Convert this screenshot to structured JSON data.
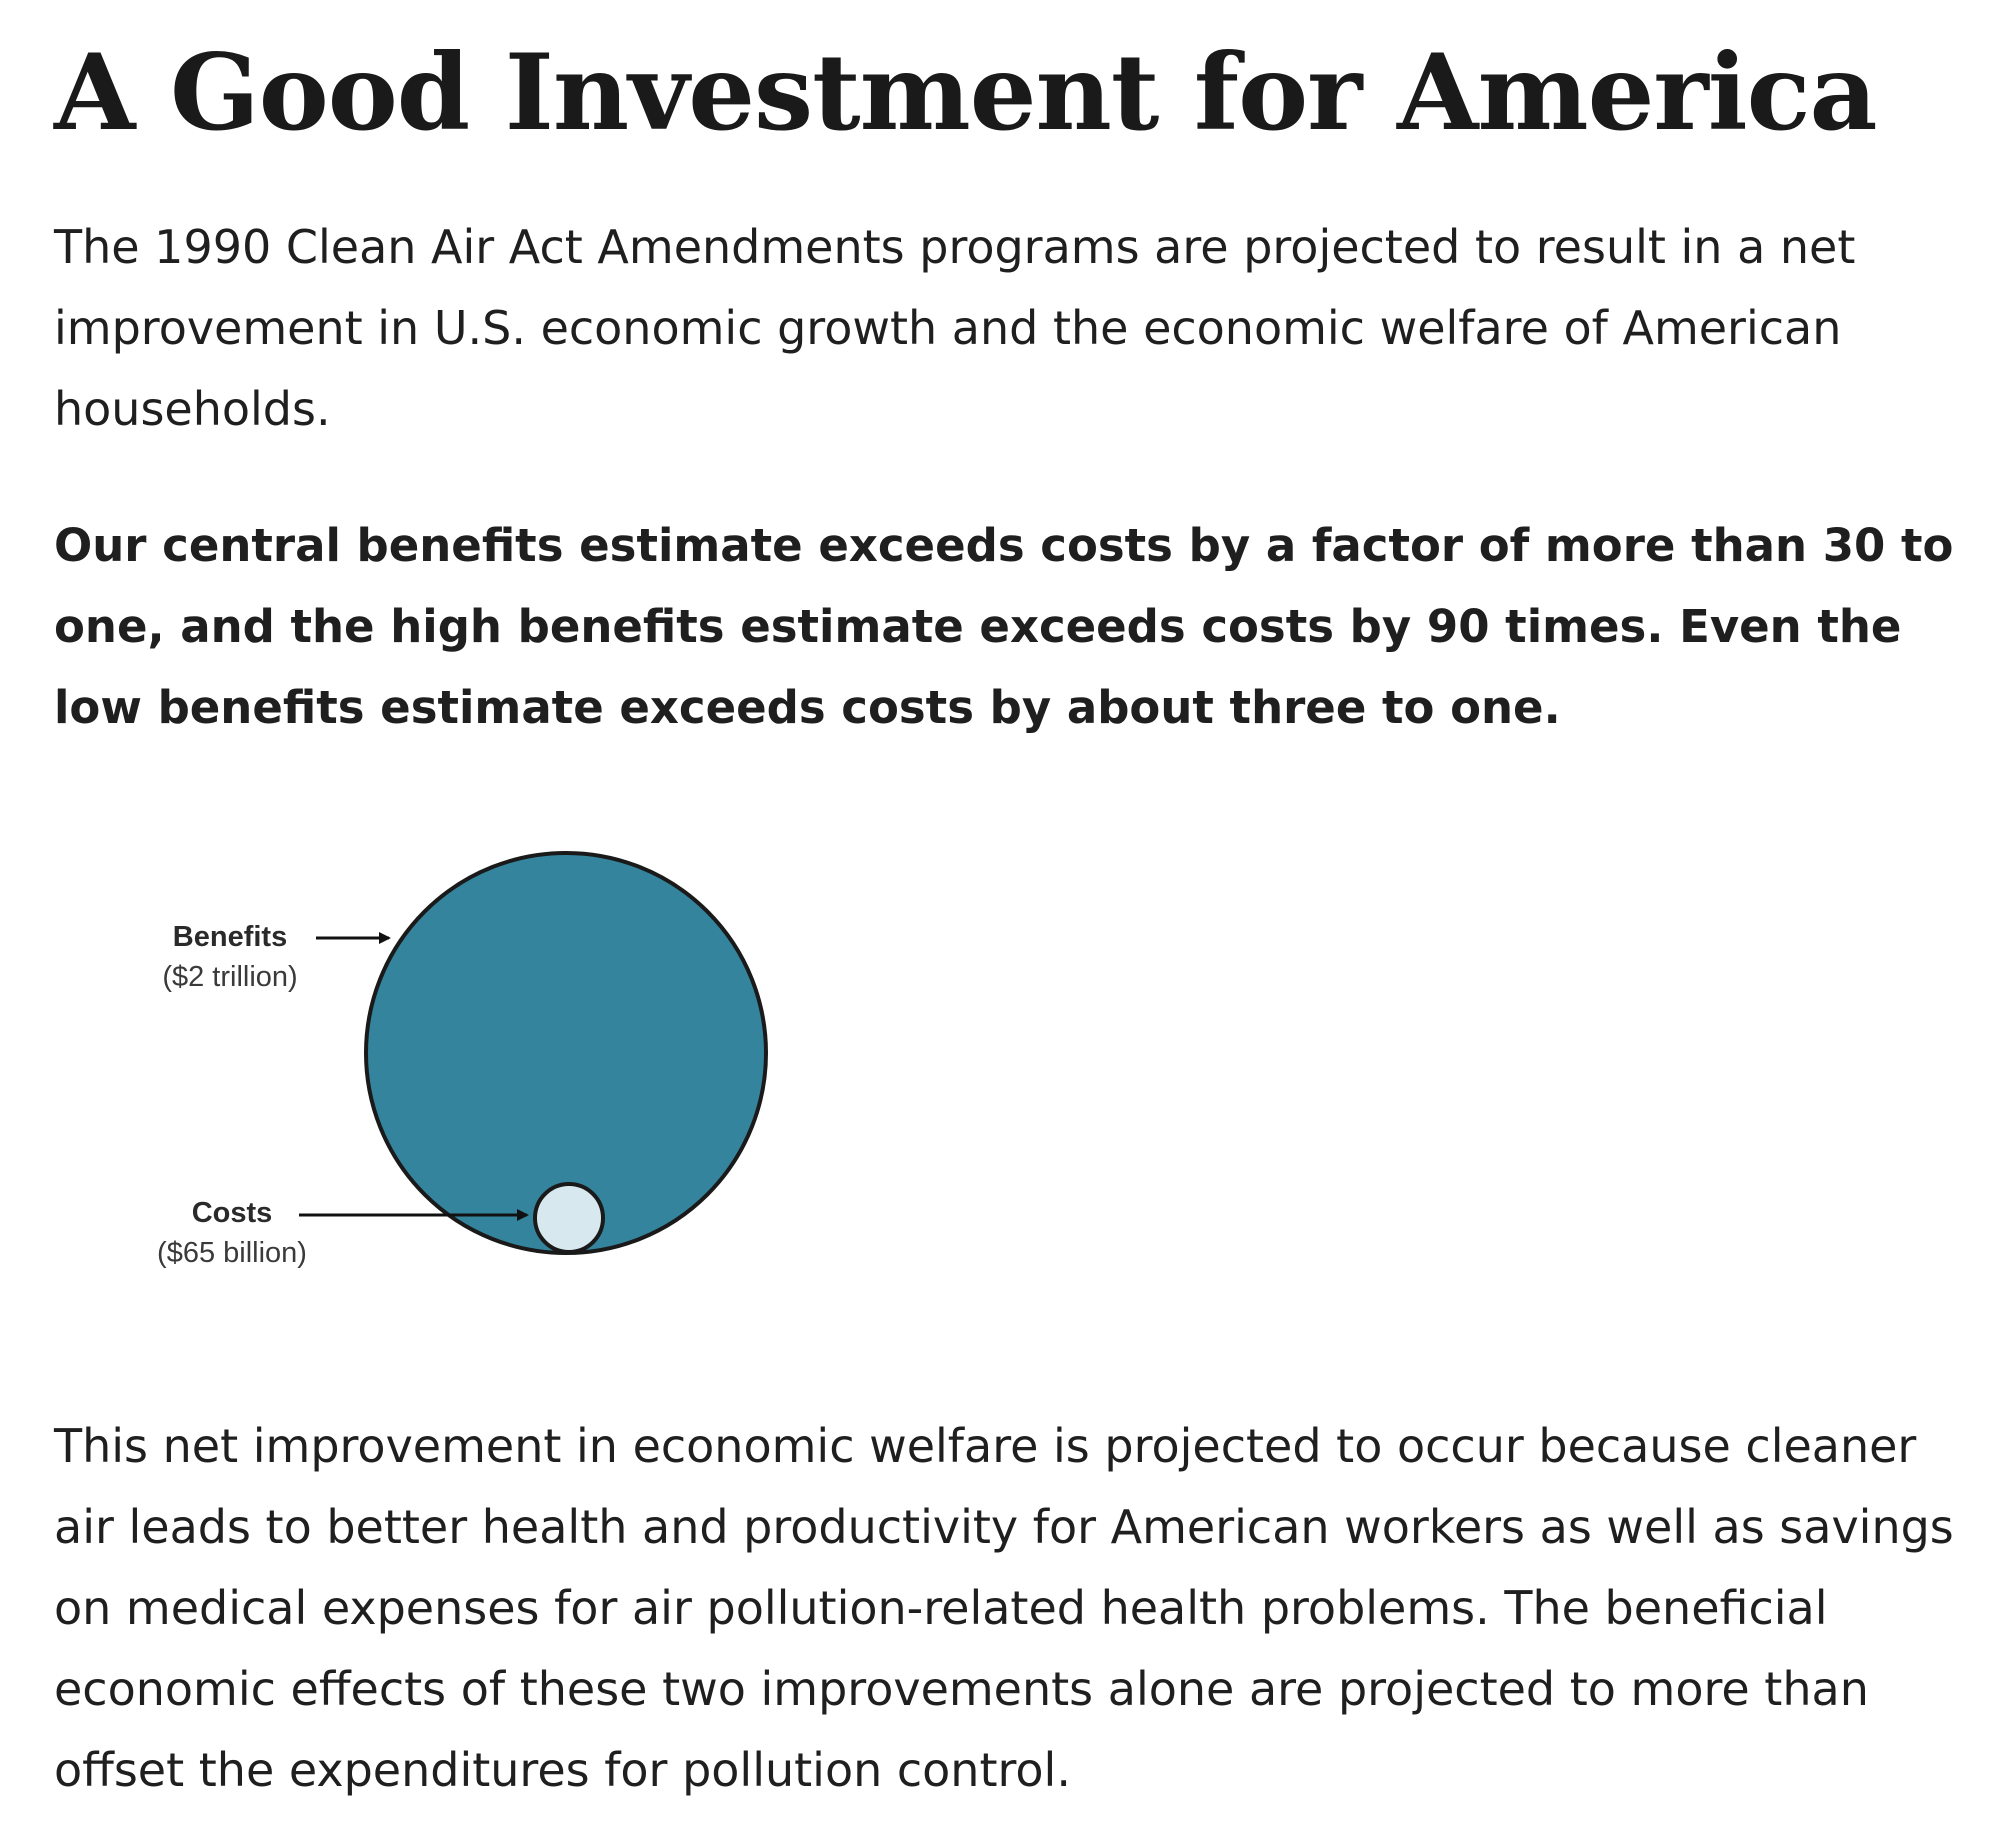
{
  "page": {
    "title": "A Good Investment for America",
    "intro": "The 1990 Clean Air Act Amendments programs are projected to result in a net improvement in U.S. economic growth and the economic welfare of American households.",
    "highlight": "Our central benefits estimate exceeds costs by a factor of more than 30 to one, and the high benefits estimate exceeds costs by 90 times. Even the low benefits estimate exceeds costs by about three to one.",
    "closing": "This net improvement in economic welfare is projected to occur because cleaner air leads to better health and productivity for American workers as well as savings on medical expenses for air pollution-related health problems. The beneficial economic effects of these two improvements alone are projected to more than offset the expenditures for pollution control."
  },
  "figure": {
    "benefits": {
      "label": "Benefits",
      "value": "($2 trillion)",
      "color": "#35849d"
    },
    "costs": {
      "label": "Costs",
      "value": "($65 billion)",
      "color": "#d7e9ef"
    },
    "outline_color": "#1a1a1a"
  }
}
